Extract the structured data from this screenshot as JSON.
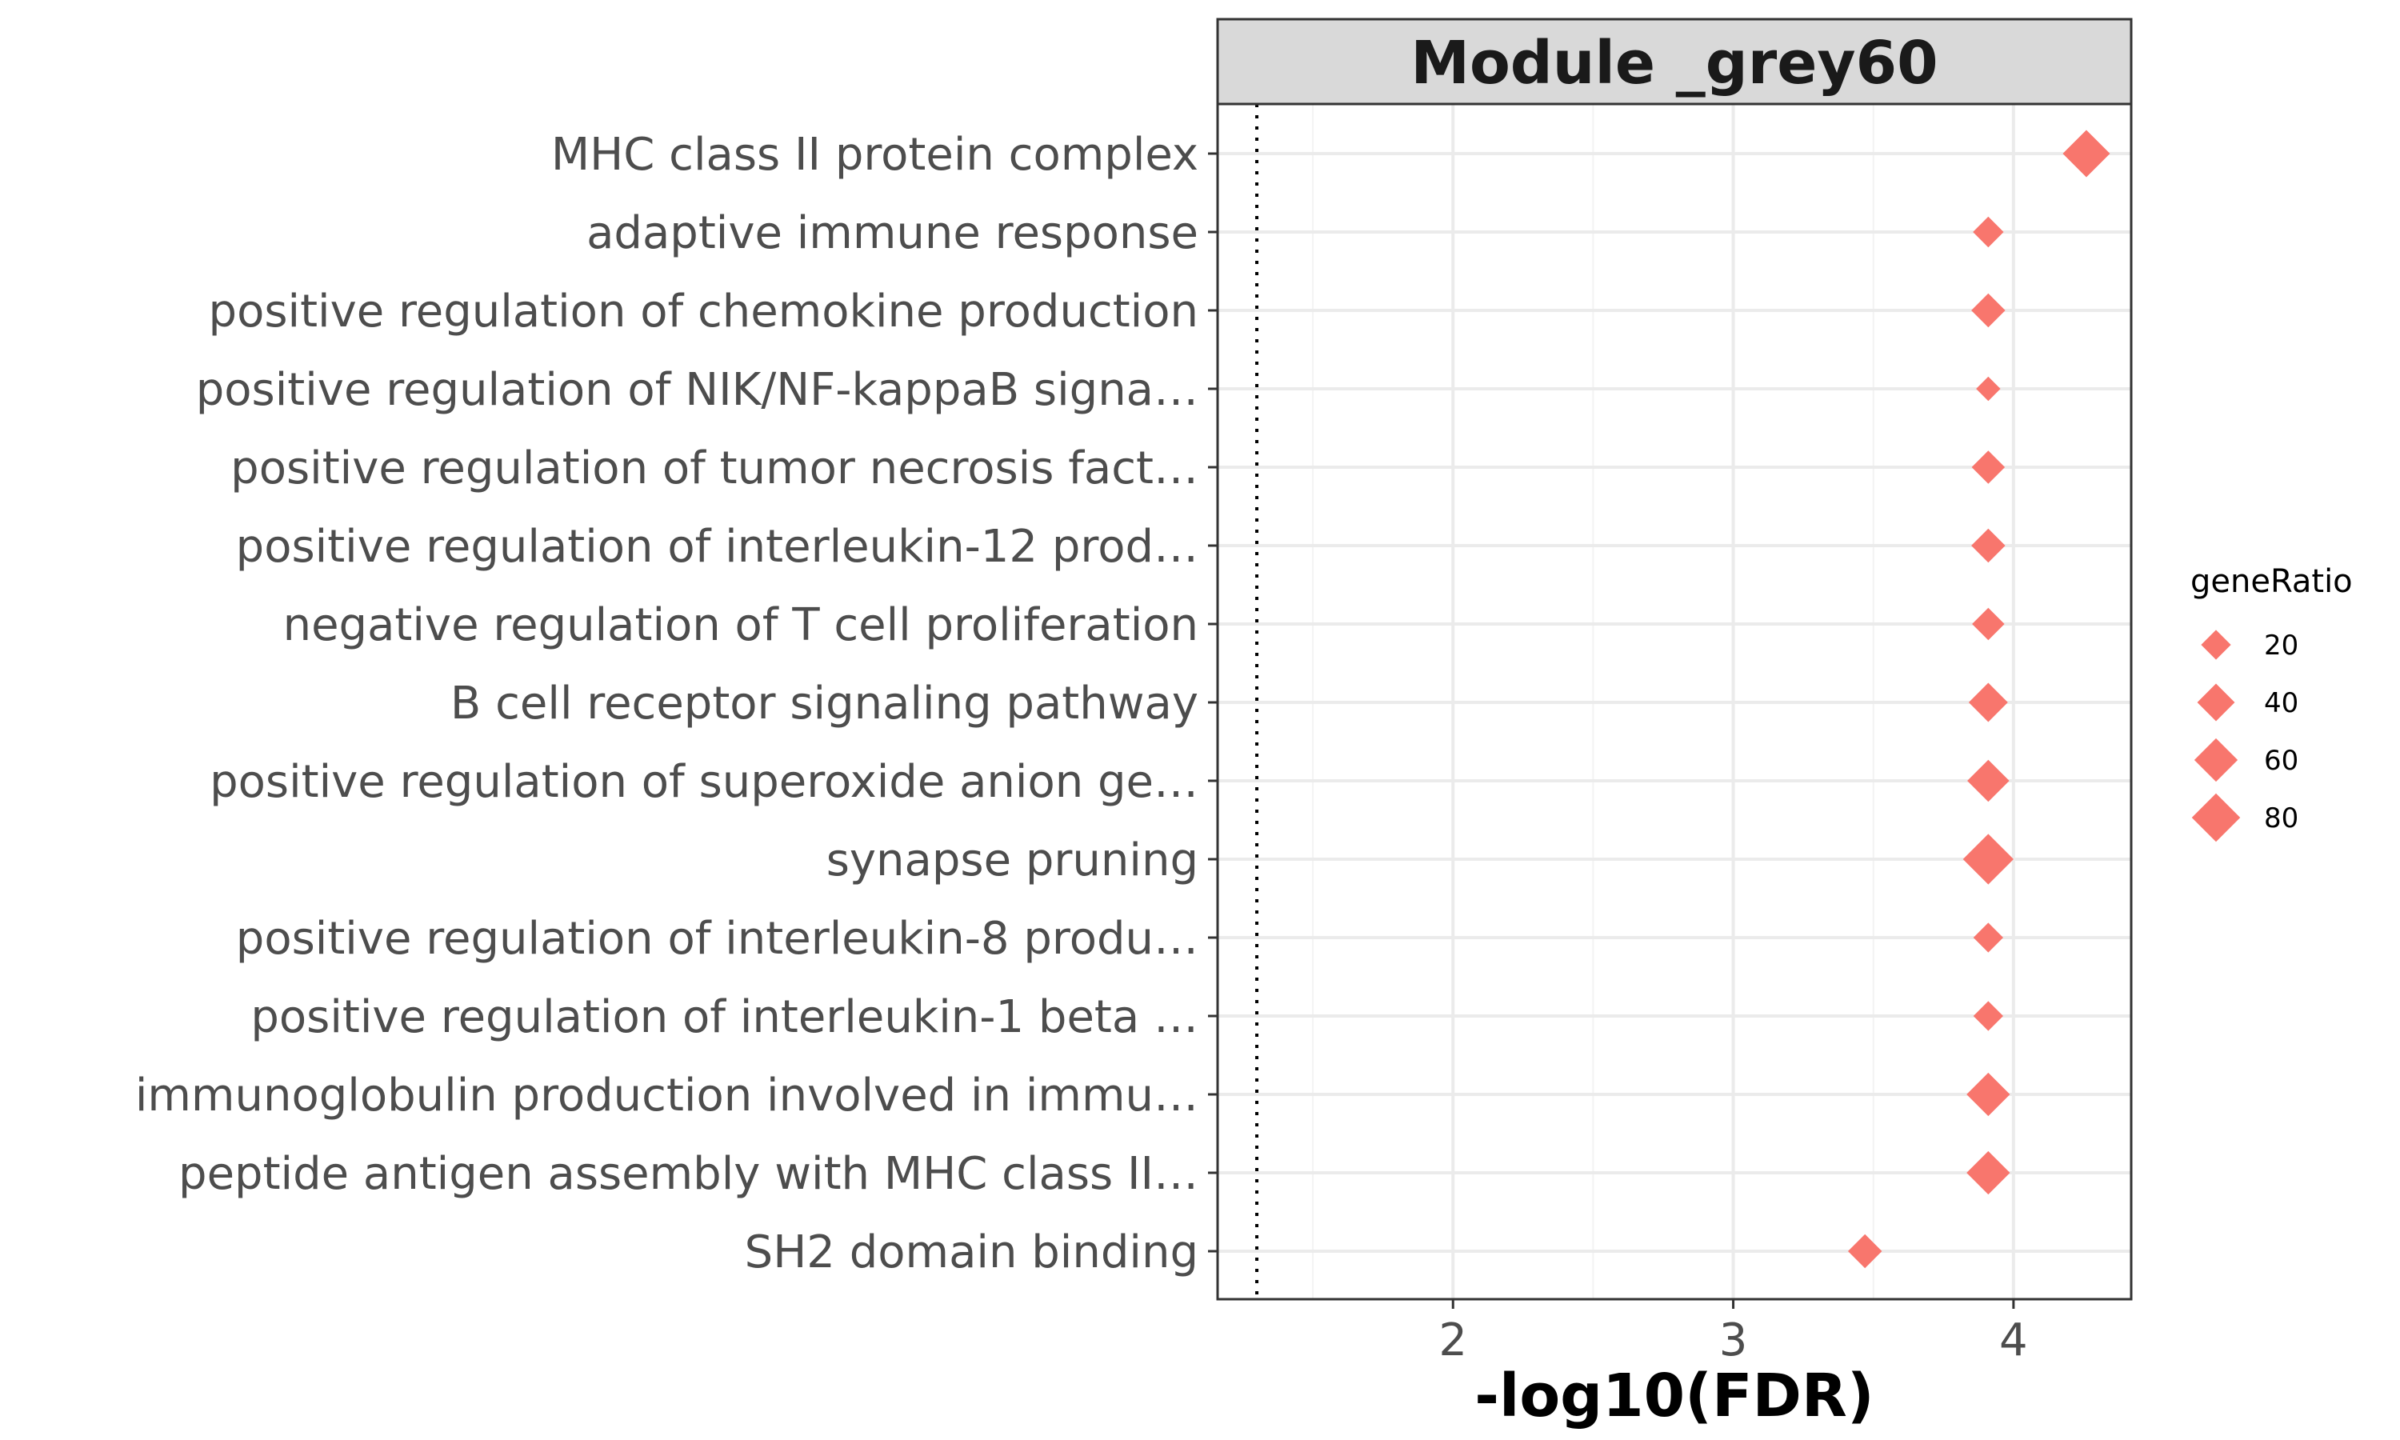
{
  "chart_data": {
    "type": "scatter",
    "title": "Module _grey60",
    "xlabel": "-log10(FDR)",
    "ylabel": "",
    "xlim": [
      1.16,
      4.42
    ],
    "xticks": [
      2,
      3,
      4
    ],
    "threshold_x": 1.3,
    "marker": "diamond",
    "grid": true,
    "legend_position": "right",
    "colors": {
      "point": "#F8766D",
      "strip_bg": "#d9d9d9",
      "grid_major": "#ebebeb",
      "grid_minor": "#f3f3f3",
      "border": "#333333",
      "threshold": "#000000"
    },
    "categories": [
      "MHC class II protein complex",
      "adaptive immune response",
      "positive regulation of chemokine production",
      "positive regulation of NIK/NF-kappaB signa…",
      "positive regulation of tumor necrosis fact…",
      "positive regulation of interleukin-12 prod…",
      "negative regulation of T cell proliferation",
      "B cell receptor signaling pathway",
      "positive regulation of superoxide anion ge…",
      "synapse pruning",
      "positive regulation of interleukin-8 produ…",
      "positive regulation of interleukin-1 beta …",
      "immunoglobulin production involved in immu…",
      "peptide antigen assembly with MHC class II…",
      "SH2 domain binding"
    ],
    "series": [
      {
        "x": [
          4.26,
          3.91,
          3.91,
          3.91,
          3.91,
          3.91,
          3.91,
          3.91,
          3.91,
          3.91,
          3.91,
          3.91,
          3.91,
          3.91,
          3.47
        ],
        "size": [
          75,
          22,
          30,
          10,
          28,
          30,
          26,
          45,
          55,
          90,
          20,
          20,
          60,
          60,
          30
        ]
      }
    ],
    "legend": {
      "title": "geneRatio",
      "values": [
        20,
        40,
        60,
        80
      ]
    }
  }
}
